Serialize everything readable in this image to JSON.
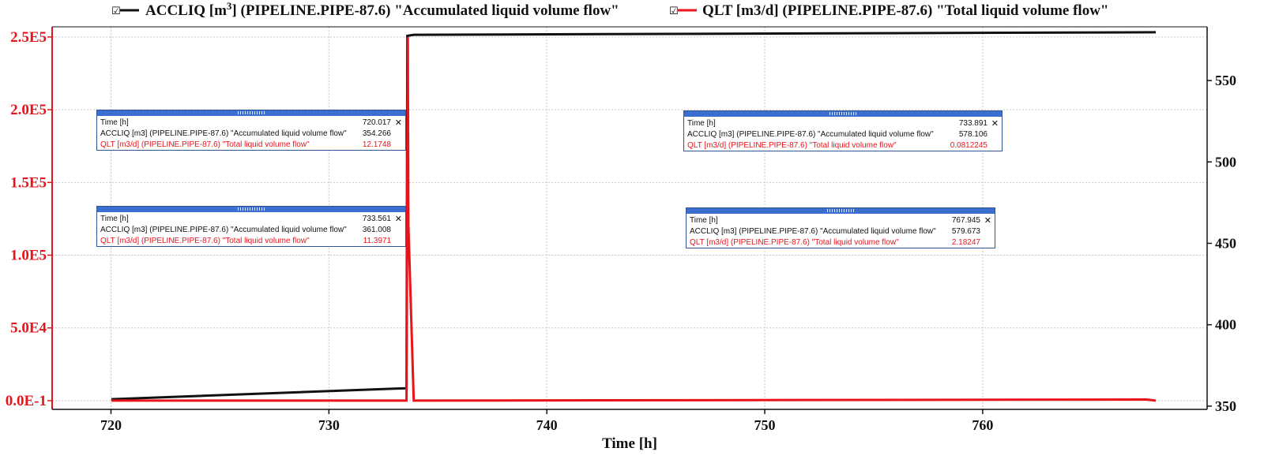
{
  "legend": [
    {
      "checkbox": "☑",
      "label_pre": "ACCLIQ [m",
      "label_sup": "3",
      "label_post": "] (PIPELINE.PIPE-87.6) \"Accumulated liquid volume flow\"",
      "color": "#111111"
    },
    {
      "checkbox": "☑",
      "label_pre": "QLT [m3/d] (PIPELINE.PIPE-87.6) \"Total liquid volume flow\"",
      "label_sup": "",
      "label_post": "",
      "color": "#e8141c"
    }
  ],
  "chart_data": {
    "type": "line",
    "xlabel": "Time [h]",
    "xlim": [
      717.3,
      770.3
    ],
    "x_ticks": [
      720,
      730,
      740,
      750,
      760
    ],
    "x_tick_labels": [
      "720",
      "730",
      "740",
      "750",
      "760"
    ],
    "left_axis": {
      "color": "#e8141c",
      "ylim": [
        -6000,
        257000
      ],
      "ticks": [
        0,
        50000,
        100000,
        150000,
        200000,
        250000
      ],
      "tick_labels": [
        "0.0E-1",
        "5.0E4",
        "1.0E5",
        "1.5E5",
        "2.0E5",
        "2.5E5"
      ]
    },
    "right_axis": {
      "color": "#111111",
      "ylim": [
        348,
        583
      ],
      "ticks": [
        350,
        400,
        450,
        500,
        550
      ],
      "tick_labels": [
        "350",
        "400",
        "450",
        "500",
        "550"
      ]
    },
    "grid": true,
    "series": [
      {
        "name": "ACCLIQ [m3] (PIPELINE.PIPE-87.6) \"Accumulated liquid volume flow\"",
        "axis": "right",
        "color": "#111111",
        "x": [
          720.017,
          733.561,
          733.6,
          733.891,
          767.945
        ],
        "y": [
          354.266,
          361.008,
          577.5,
          578.106,
          579.673
        ]
      },
      {
        "name": "QLT [m3/d] (PIPELINE.PIPE-87.6) \"Total liquid volume flow\"",
        "axis": "left",
        "color": "#e8141c",
        "x": [
          720.017,
          733.561,
          733.6,
          733.62,
          733.65,
          733.891,
          767.5,
          767.945
        ],
        "y": [
          12.1748,
          11.3971,
          150000,
          250000,
          120000,
          0.0812245,
          800,
          2.18247
        ]
      }
    ]
  },
  "tooltips": [
    {
      "time_label": "Time [h]",
      "time_value": "720.017",
      "row1_label": "ACCLIQ [m3] (PIPELINE.PIPE-87.6) \"Accumulated liquid volume flow\"",
      "row1_value": "354.266",
      "row2_label": "QLT [m3/d] (PIPELINE.PIPE-87.6) \"Total liquid volume flow\"",
      "row2_value": "12.1748",
      "close": "✕"
    },
    {
      "time_label": "Time [h]",
      "time_value": "733.561",
      "row1_label": "ACCLIQ [m3] (PIPELINE.PIPE-87.6) \"Accumulated liquid volume flow\"",
      "row1_value": "361.008",
      "row2_label": "QLT [m3/d] (PIPELINE.PIPE-87.6) \"Total liquid volume flow\"",
      "row2_value": "11.3971",
      "close": "✕"
    },
    {
      "time_label": "Time [h]",
      "time_value": "733.891",
      "row1_label": "ACCLIQ [m3] (PIPELINE.PIPE-87.6) \"Accumulated liquid volume flow\"",
      "row1_value": "578.106",
      "row2_label": "QLT [m3/d] (PIPELINE.PIPE-87.6) \"Total liquid volume flow\"",
      "row2_value": "0.0812245",
      "close": "✕"
    },
    {
      "time_label": "Time [h]",
      "time_value": "767.945",
      "row1_label": "ACCLIQ [m3] (PIPELINE.PIPE-87.6) \"Accumulated liquid volume flow\"",
      "row1_value": "579.673",
      "row2_label": "QLT [m3/d] (PIPELINE.PIPE-87.6) \"Total liquid volume flow\"",
      "row2_value": "2.18247",
      "close": "✕"
    }
  ]
}
